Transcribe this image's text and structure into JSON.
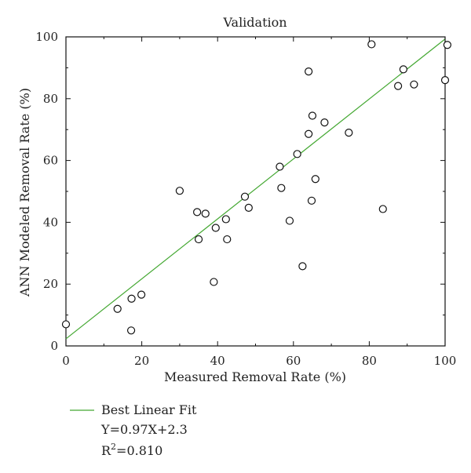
{
  "chart_data": {
    "type": "scatter",
    "title": "Validation",
    "xlabel": "Measured Removal Rate (%)",
    "ylabel": "ANN Modeled Removal Rate (%)",
    "xlim": [
      0,
      100
    ],
    "ylim": [
      0,
      100
    ],
    "xticks": [
      "0",
      "20",
      "40",
      "60",
      "80",
      "100"
    ],
    "yticks": [
      "0",
      "20",
      "40",
      "60",
      "80",
      "100"
    ],
    "grid": false,
    "points": [
      {
        "x": 0,
        "y": 7
      },
      {
        "x": 13.6,
        "y": 12
      },
      {
        "x": 17.3,
        "y": 15.3
      },
      {
        "x": 17.2,
        "y": 5.0
      },
      {
        "x": 19.9,
        "y": 16.6
      },
      {
        "x": 30.0,
        "y": 50.2
      },
      {
        "x": 34.6,
        "y": 43.3
      },
      {
        "x": 35.0,
        "y": 34.5
      },
      {
        "x": 36.8,
        "y": 42.8
      },
      {
        "x": 39.0,
        "y": 20.7
      },
      {
        "x": 39.5,
        "y": 38.2
      },
      {
        "x": 42.2,
        "y": 41.0
      },
      {
        "x": 42.5,
        "y": 34.5
      },
      {
        "x": 47.2,
        "y": 48.3
      },
      {
        "x": 48.2,
        "y": 44.7
      },
      {
        "x": 56.4,
        "y": 58.0
      },
      {
        "x": 56.8,
        "y": 51.1
      },
      {
        "x": 59.0,
        "y": 40.5
      },
      {
        "x": 61.0,
        "y": 62.1
      },
      {
        "x": 62.4,
        "y": 25.8
      },
      {
        "x": 64.0,
        "y": 68.6
      },
      {
        "x": 64.0,
        "y": 88.8
      },
      {
        "x": 64.8,
        "y": 47.0
      },
      {
        "x": 65.0,
        "y": 74.5
      },
      {
        "x": 65.8,
        "y": 54.0
      },
      {
        "x": 68.2,
        "y": 72.3
      },
      {
        "x": 74.6,
        "y": 69.0
      },
      {
        "x": 80.6,
        "y": 97.6
      },
      {
        "x": 83.6,
        "y": 44.3
      },
      {
        "x": 87.6,
        "y": 84.1
      },
      {
        "x": 89.0,
        "y": 89.5
      },
      {
        "x": 91.8,
        "y": 84.6
      },
      {
        "x": 100.0,
        "y": 86.0
      },
      {
        "x": 100.6,
        "y": 97.4
      }
    ],
    "fit": {
      "slope": 0.97,
      "intercept": 2.3,
      "x_range": [
        0,
        100
      ]
    },
    "legend": {
      "position": "bottom-left",
      "entry": "Best Linear Fit",
      "equation": "Y=0.97X+2.3",
      "r2_prefix": "R",
      "r2_sup": "2",
      "r2_value": "=0.810"
    },
    "colors": {
      "fit_line": "#44a832",
      "points_stroke": "#111111",
      "points_fill": "#ffffff"
    }
  }
}
